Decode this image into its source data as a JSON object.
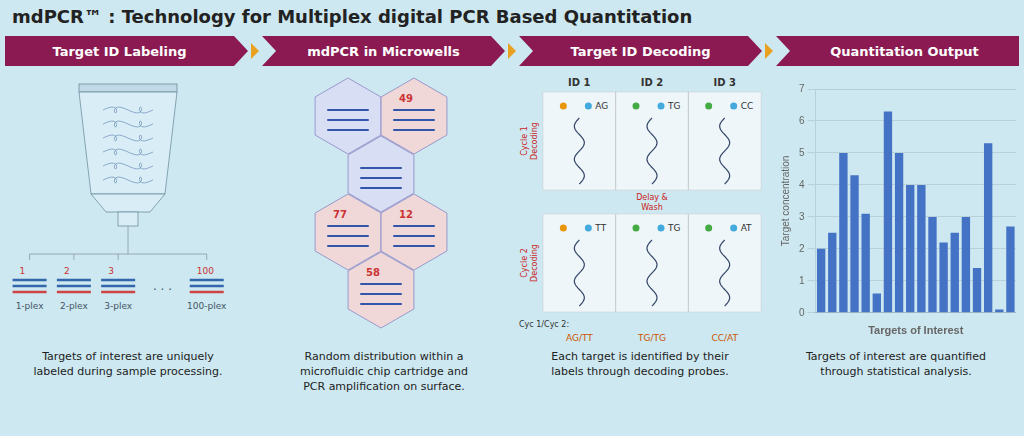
{
  "chart_data": {
    "type": "bar",
    "title": "mdPCR™ : Technology for Multiplex digital PCR Based Quantitation",
    "categories": [
      null,
      null,
      null,
      null,
      null,
      null,
      null,
      null,
      null,
      null,
      null,
      null,
      null,
      null,
      null,
      null,
      null,
      null
    ],
    "values": [
      2.0,
      2.5,
      5.0,
      4.3,
      3.1,
      0.6,
      6.3,
      5.0,
      4.0,
      4.0,
      3.0,
      2.2,
      2.5,
      3.0,
      1.4,
      5.3,
      0.1,
      2.7
    ],
    "color": "#4472c4",
    "x_label": "Targets of Interest",
    "y_label": "Target concentration",
    "ylim": [
      0,
      7
    ],
    "yticks": [
      0,
      1,
      2,
      3,
      4,
      5,
      6,
      7
    ],
    "grid": true,
    "tick_labels": "y",
    "annotations": [
      [
        "Target ID Labeling",
        "mdPCR in Microwells",
        "Target ID Decoding",
        "Quantitation Output"
      ],
      [
        "1",
        "2",
        "3",
        "100",
        "1-plex",
        "2-plex",
        "3-plex",
        "100-plex",
        ". . ."
      ],
      [
        "49",
        "77",
        "12",
        "58"
      ],
      [
        [
          "ID 1",
          "ID 2",
          "ID 3"
        ],
        [
          "Cycle 1\nDecoding",
          "Delay &\nWash",
          "Cycle 2\nDecoding"
        ],
        [
          "AG",
          "TG",
          "CC"
        ],
        [
          "TT",
          "TG",
          "AT"
        ],
        [
          "Cyc 1/Cyc 2:",
          "AG/TT",
          "TG/TG",
          "CC/AT"
        ]
      ],
      [
        "Targets of interest are uniquely\nlabeled during sample processing.",
        "Random distribution within a\nmicrofluidic chip cartridge and\nPCR amplification on surface.",
        "Each target is identified by their\nlabels through decoding probes.",
        "Targets of interest are quantified\nthrough statistical analysis."
      ]
    ]
  }
}
